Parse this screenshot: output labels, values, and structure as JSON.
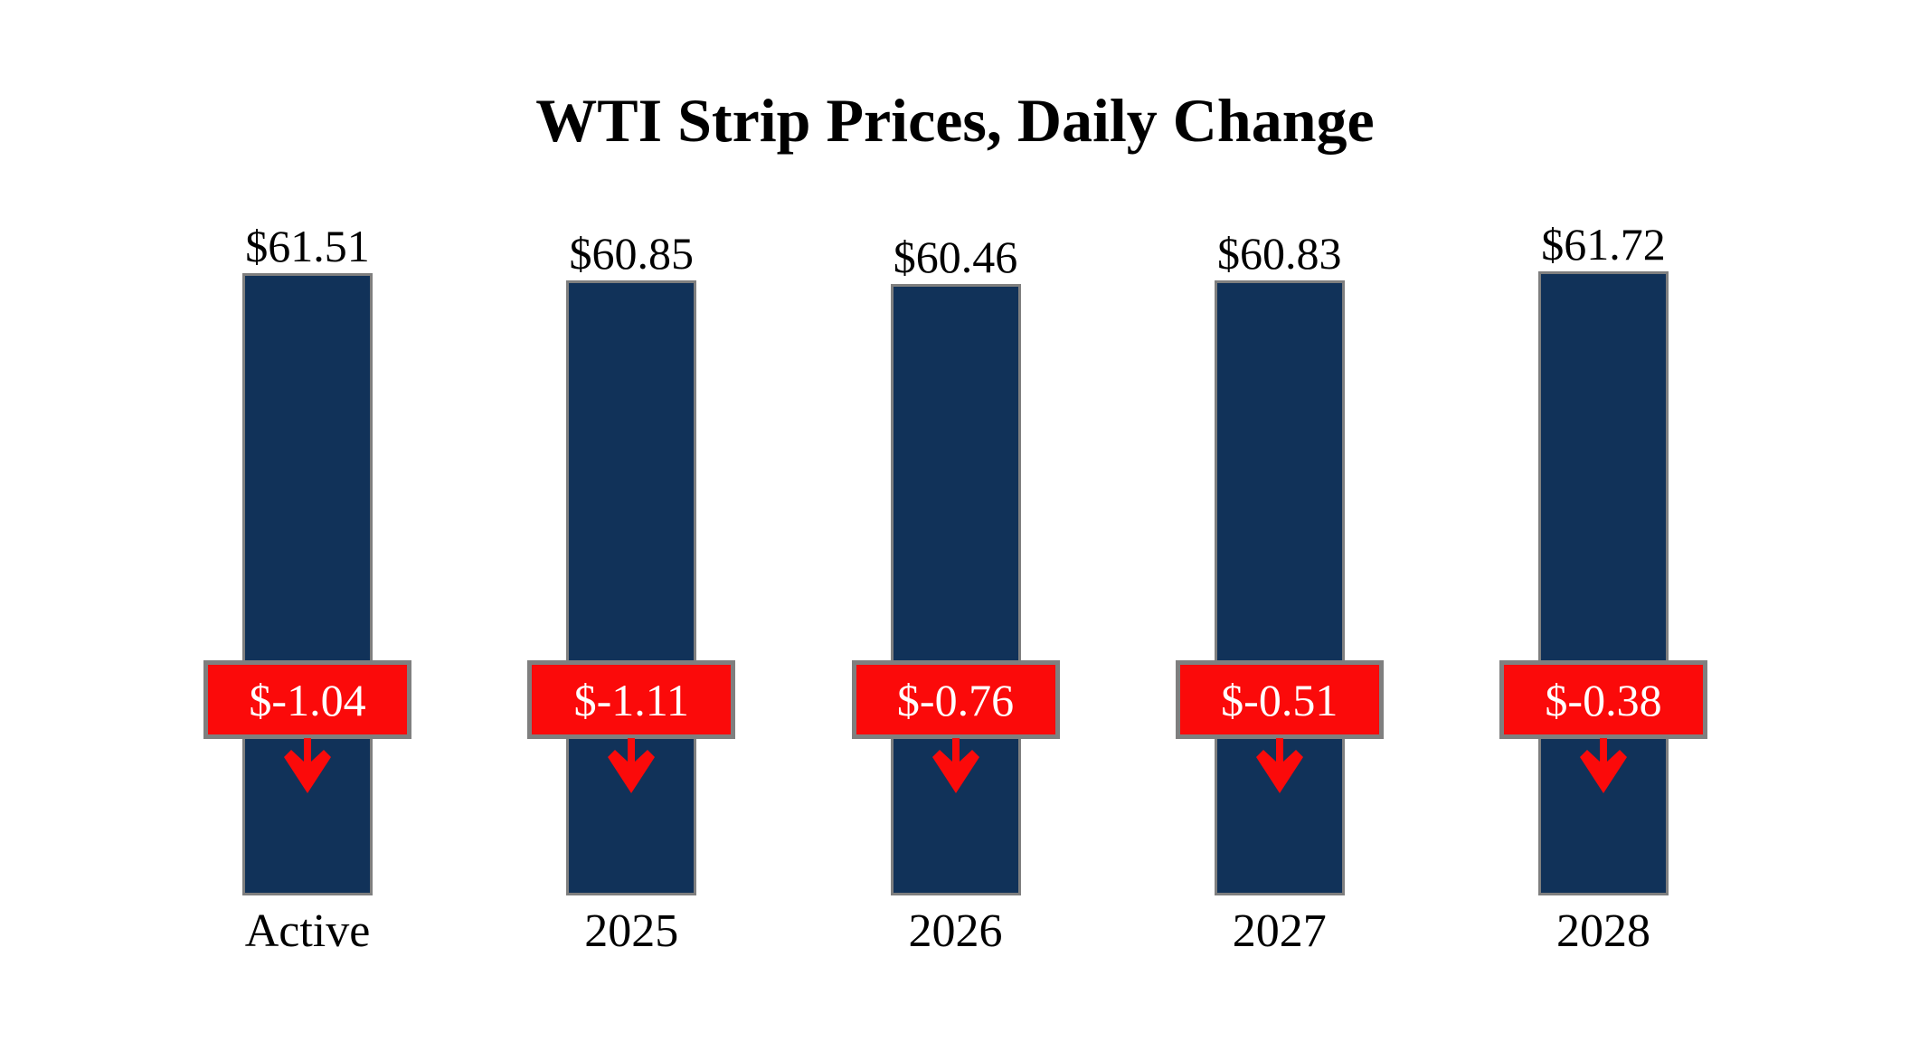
{
  "title": "WTI Strip Prices, Daily Change",
  "colors": {
    "background": "#ffffff",
    "bar_fill": "#113259",
    "bar_border": "#7f7f7f",
    "badge_fill": "#fb0a0a",
    "badge_border": "#7f7f7f",
    "badge_text": "#ffffff",
    "arrow": "#fb0a0a",
    "title_text": "#000000",
    "label_text": "#000000"
  },
  "chart_data": {
    "type": "bar",
    "title": "WTI Strip Prices, Daily Change",
    "categories": [
      "Active",
      "2025",
      "2026",
      "2027",
      "2028"
    ],
    "series": [
      {
        "name": "WTI Strip Price",
        "values": [
          61.51,
          60.85,
          60.46,
          60.83,
          61.72
        ]
      },
      {
        "name": "Daily Change",
        "values": [
          -1.04,
          -1.11,
          -0.76,
          -0.51,
          -0.38
        ]
      }
    ],
    "price_labels": [
      "$61.51",
      "$60.85",
      "$60.46",
      "$60.83",
      "$61.72"
    ],
    "change_labels": [
      "$-1.04",
      "$-1.11",
      "$-0.76",
      "$-0.51",
      "$-0.38"
    ],
    "ylim": [
      0,
      61.72
    ],
    "grid": false,
    "legend": false,
    "annotations": "Each bar topped by outside price label; red bordered box with daily change value and red down arrow overlaid on each bar"
  }
}
